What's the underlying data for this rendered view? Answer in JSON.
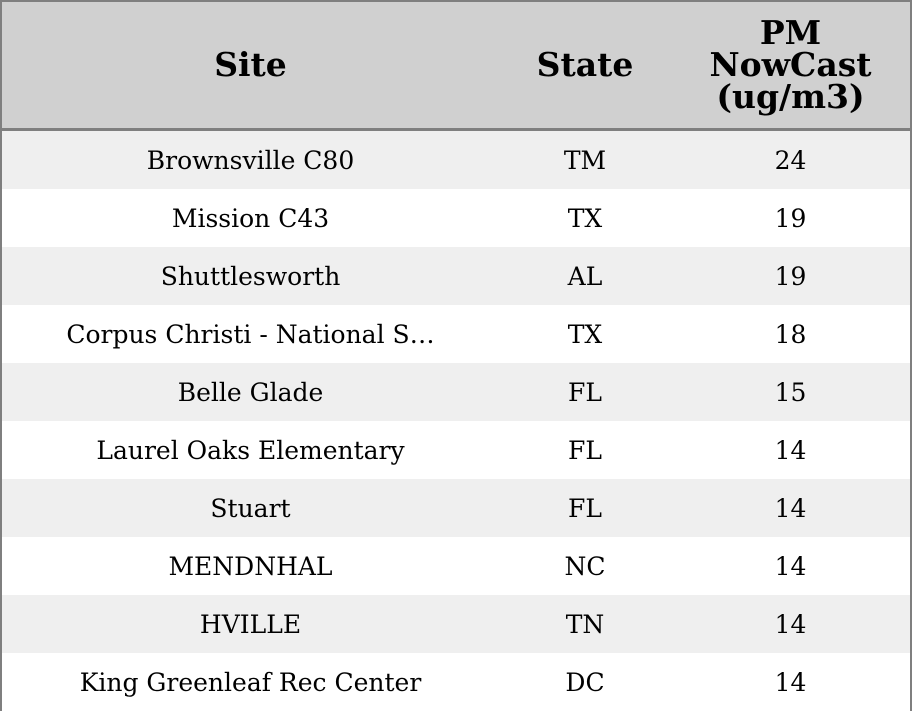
{
  "chart_data": {
    "type": "table",
    "columns": [
      "Site",
      "State",
      "PM NowCast (ug/m3)"
    ],
    "header": {
      "site": "Site",
      "state": "State",
      "pm_line1": "PM",
      "pm_line2": "NowCast",
      "pm_line3": "(ug/m3)"
    },
    "rows": [
      {
        "site": "Brownsville C80",
        "state": "TM",
        "pm": 24
      },
      {
        "site": "Mission C43",
        "state": "TX",
        "pm": 19
      },
      {
        "site": "Shuttlesworth",
        "state": "AL",
        "pm": 19
      },
      {
        "site": "Corpus Christi - National S…",
        "state": "TX",
        "pm": 18
      },
      {
        "site": "Belle Glade",
        "state": "FL",
        "pm": 15
      },
      {
        "site": "Laurel Oaks Elementary",
        "state": "FL",
        "pm": 14
      },
      {
        "site": "Stuart",
        "state": "FL",
        "pm": 14
      },
      {
        "site": "MENDNHAL",
        "state": "NC",
        "pm": 14
      },
      {
        "site": "HVILLE",
        "state": "TN",
        "pm": 14
      },
      {
        "site": "King Greenleaf Rec Center",
        "state": "DC",
        "pm": 14
      }
    ]
  },
  "colors": {
    "header_bg": "#d0d0d0",
    "stripe_bg": "#efefef",
    "row_bg": "#ffffff",
    "border": "#7f7f7f"
  }
}
